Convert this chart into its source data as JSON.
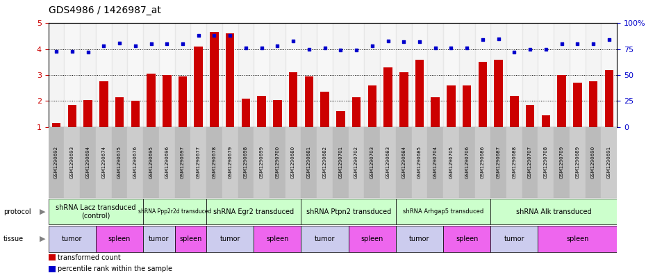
{
  "title": "GDS4986 / 1426987_at",
  "samples": [
    "GSM1290692",
    "GSM1290693",
    "GSM1290694",
    "GSM1290674",
    "GSM1290675",
    "GSM1290676",
    "GSM1290695",
    "GSM1290696",
    "GSM1290697",
    "GSM1290677",
    "GSM1290678",
    "GSM1290679",
    "GSM1290698",
    "GSM1290699",
    "GSM1290700",
    "GSM1290680",
    "GSM1290681",
    "GSM1290682",
    "GSM1290701",
    "GSM1290702",
    "GSM1290703",
    "GSM1290683",
    "GSM1290684",
    "GSM1290685",
    "GSM1290704",
    "GSM1290705",
    "GSM1290706",
    "GSM1290686",
    "GSM1290687",
    "GSM1290688",
    "GSM1290707",
    "GSM1290708",
    "GSM1290709",
    "GSM1290689",
    "GSM1290690",
    "GSM1290691"
  ],
  "bar_values": [
    1.15,
    1.85,
    2.05,
    2.75,
    2.15,
    2.0,
    3.05,
    3.0,
    2.95,
    4.1,
    4.65,
    4.6,
    2.1,
    2.2,
    2.05,
    3.1,
    2.95,
    2.35,
    1.6,
    2.15,
    2.6,
    3.3,
    3.1,
    3.6,
    2.15,
    2.6,
    2.6,
    3.5,
    3.6,
    2.2,
    1.85,
    1.45,
    3.0,
    2.7,
    2.75,
    3.2
  ],
  "percentile_values": [
    73,
    73,
    72,
    78,
    81,
    78,
    80,
    80,
    80,
    88,
    88,
    88,
    76,
    76,
    78,
    83,
    75,
    76,
    74,
    74,
    78,
    83,
    82,
    82,
    76,
    76,
    76,
    84,
    85,
    72,
    75,
    75,
    80,
    80,
    80,
    84
  ],
  "protocols": [
    {
      "label": "shRNA Lacz transduced\n(control)",
      "start": 0,
      "end": 6,
      "fontsize": 7
    },
    {
      "label": "shRNA Ppp2r2d transduced",
      "start": 6,
      "end": 10,
      "fontsize": 5.5
    },
    {
      "label": "shRNA Egr2 transduced",
      "start": 10,
      "end": 16,
      "fontsize": 7
    },
    {
      "label": "shRNA Ptpn2 transduced",
      "start": 16,
      "end": 22,
      "fontsize": 7
    },
    {
      "label": "shRNA Arhgap5 transduced",
      "start": 22,
      "end": 28,
      "fontsize": 6
    },
    {
      "label": "shRNA Alk transduced",
      "start": 28,
      "end": 36,
      "fontsize": 7
    }
  ],
  "tissues": [
    {
      "label": "tumor",
      "start": 0,
      "end": 3,
      "color": "#ccccee"
    },
    {
      "label": "spleen",
      "start": 3,
      "end": 6,
      "color": "#ee66ee"
    },
    {
      "label": "tumor",
      "start": 6,
      "end": 8,
      "color": "#ccccee"
    },
    {
      "label": "spleen",
      "start": 8,
      "end": 10,
      "color": "#ee66ee"
    },
    {
      "label": "tumor",
      "start": 10,
      "end": 13,
      "color": "#ccccee"
    },
    {
      "label": "spleen",
      "start": 13,
      "end": 16,
      "color": "#ee66ee"
    },
    {
      "label": "tumor",
      "start": 16,
      "end": 19,
      "color": "#ccccee"
    },
    {
      "label": "spleen",
      "start": 19,
      "end": 22,
      "color": "#ee66ee"
    },
    {
      "label": "tumor",
      "start": 22,
      "end": 25,
      "color": "#ccccee"
    },
    {
      "label": "spleen",
      "start": 25,
      "end": 28,
      "color": "#ee66ee"
    },
    {
      "label": "tumor",
      "start": 28,
      "end": 31,
      "color": "#ccccee"
    },
    {
      "label": "spleen",
      "start": 31,
      "end": 36,
      "color": "#ee66ee"
    }
  ],
  "bar_color": "#cc0000",
  "dot_color": "#0000cc",
  "ylim_left": [
    1,
    5
  ],
  "ylim_right": [
    0,
    100
  ],
  "yticks_left": [
    1,
    2,
    3,
    4,
    5
  ],
  "yticks_right": [
    0,
    25,
    50,
    75,
    100
  ],
  "proto_color": "#ccffcc",
  "xtick_colors": [
    "#bbbbbb",
    "#cccccc"
  ],
  "grid_color": "#333333"
}
